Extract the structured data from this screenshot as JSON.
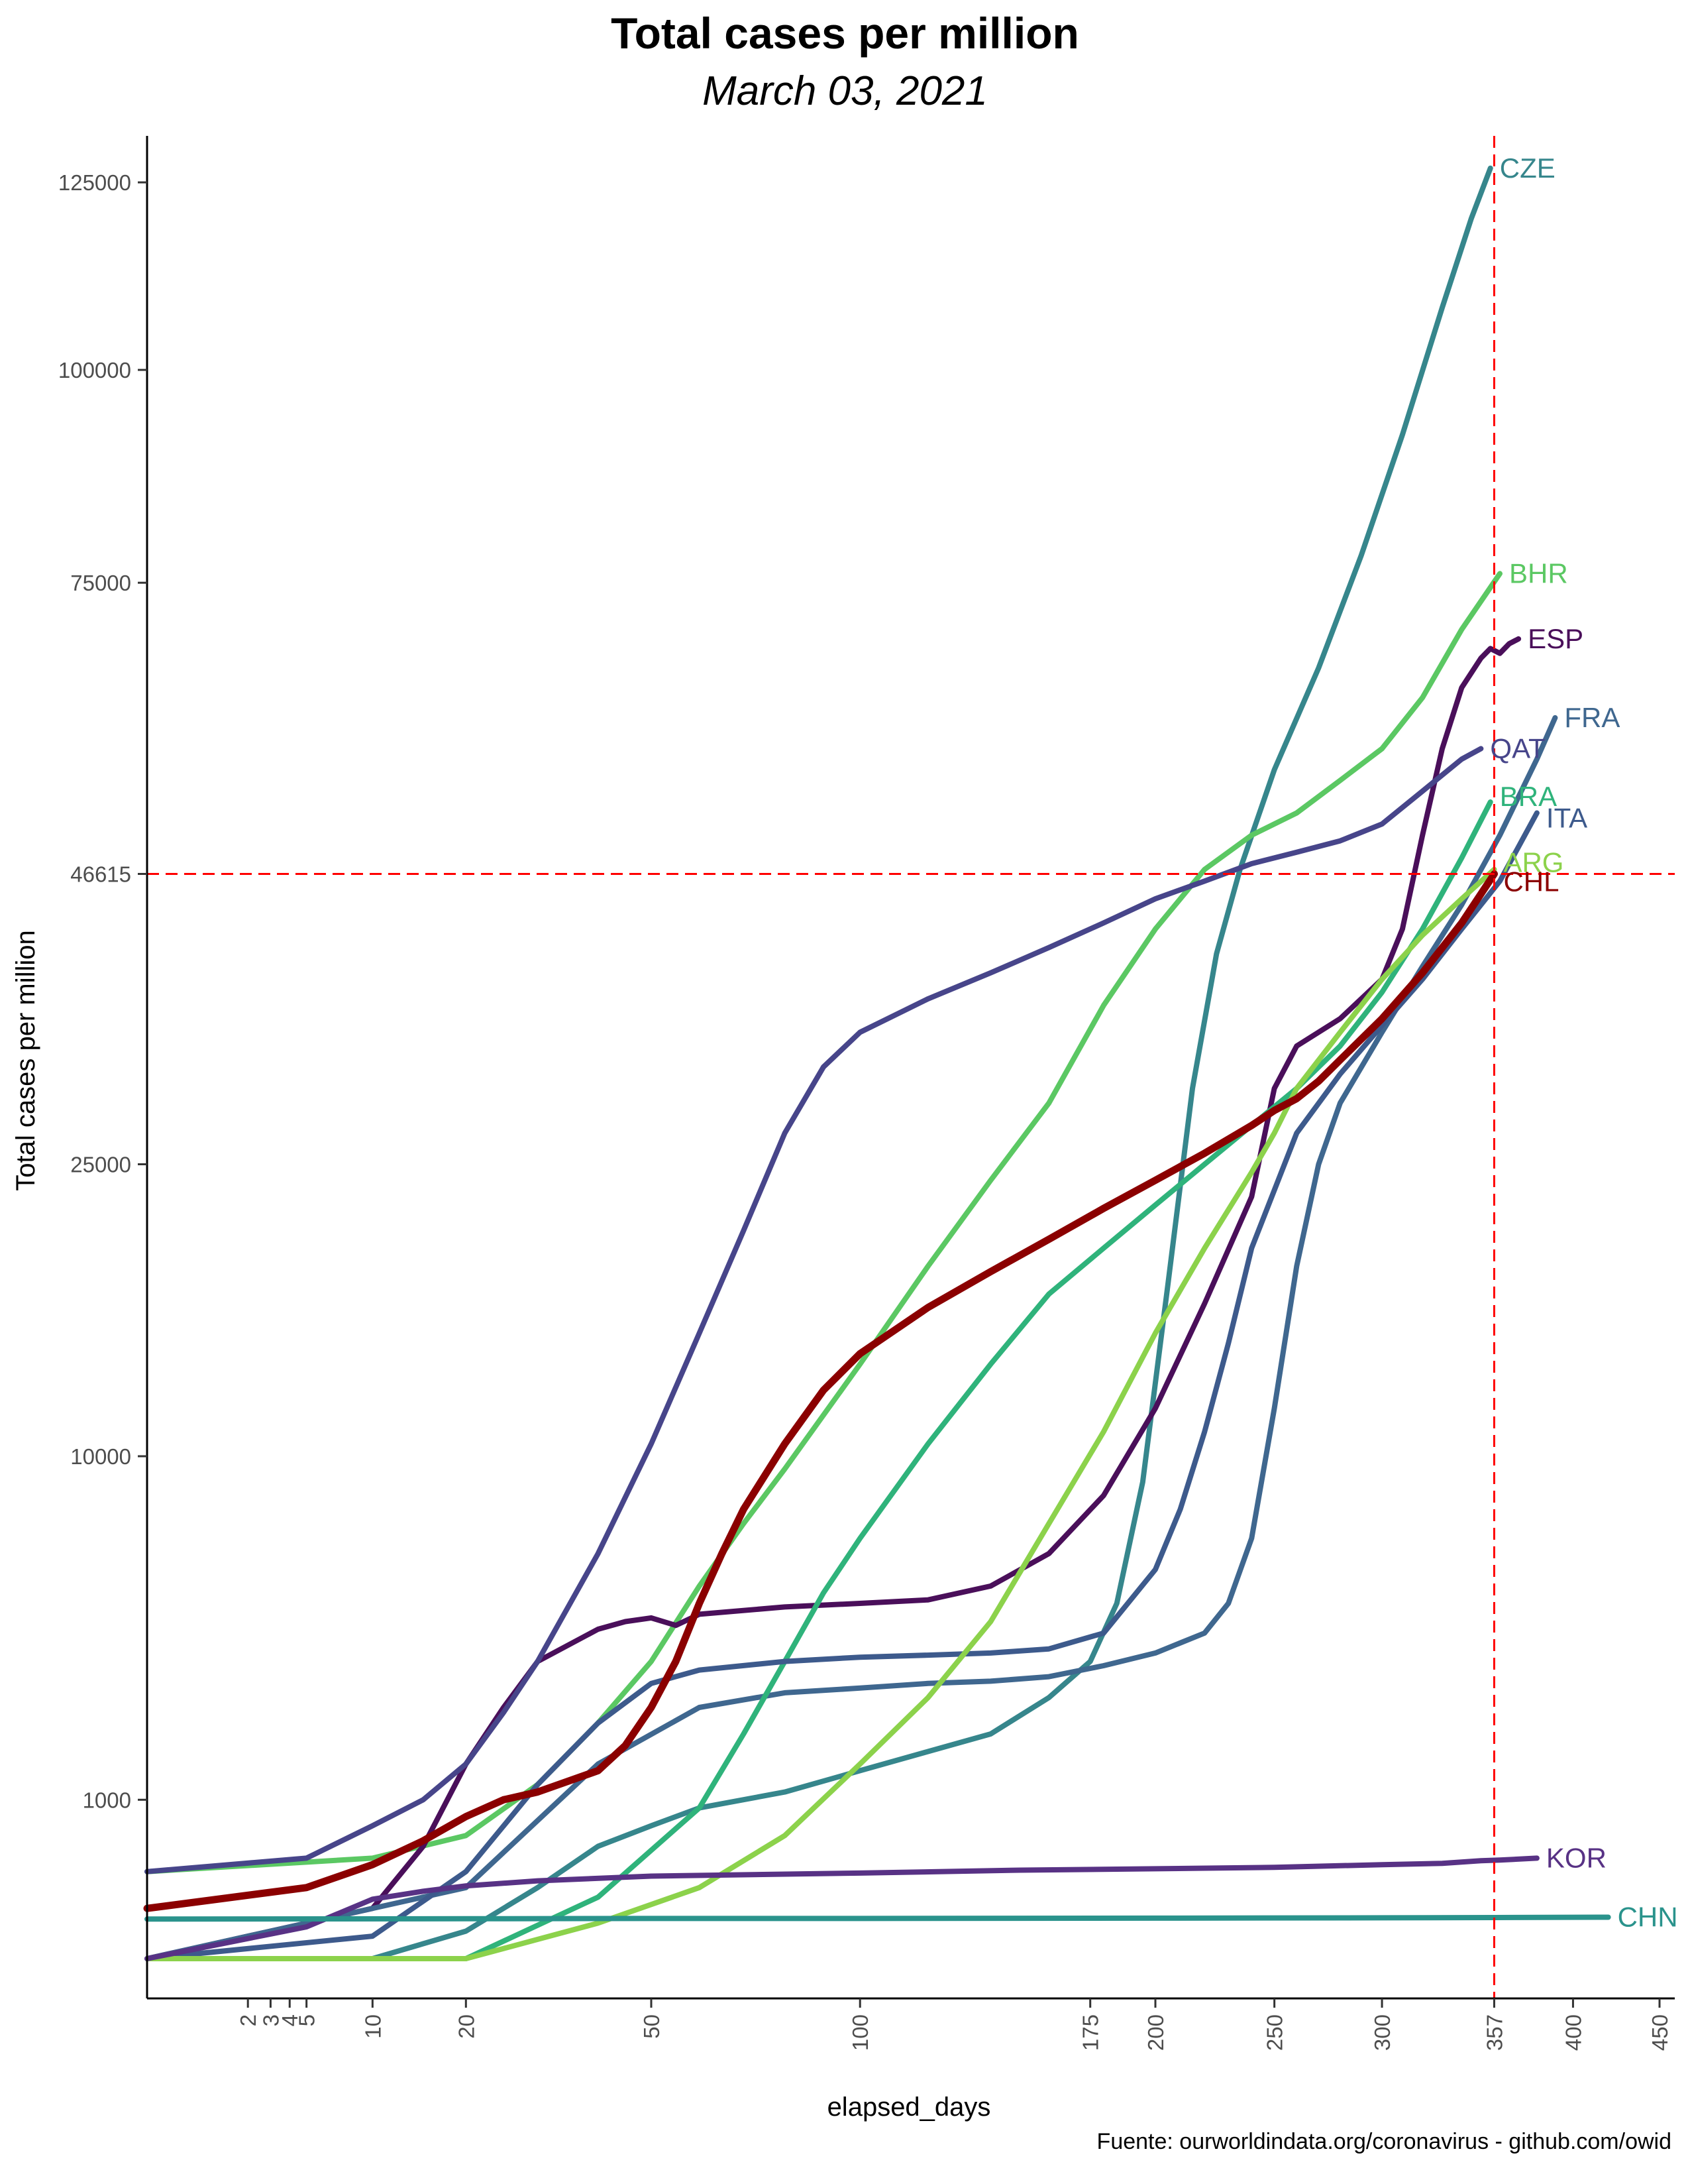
{
  "title": "Total cases per million",
  "subtitle": "March 03, 2021",
  "caption": "Fuente: ourworldindata.org/coronavirus - github.com/owid",
  "chart_data": {
    "type": "line",
    "title": "Total cases per million",
    "subtitle": "March 03, 2021",
    "xlabel": "elapsed_days",
    "ylabel": "Total cases per million",
    "x_scale": "sqrt",
    "y_scale": "sqrt",
    "xlim": [
      0,
      450
    ],
    "ylim": [
      0,
      135000
    ],
    "x_ticks": [
      2,
      3,
      4,
      5,
      10,
      20,
      50,
      100,
      175,
      200,
      250,
      300,
      357,
      400,
      450
    ],
    "y_ticks": [
      1000,
      10000,
      25000,
      46615,
      75000,
      100000,
      125000
    ],
    "grid": false,
    "legend": "none",
    "reference_lines": [
      {
        "axis": "x",
        "value": 357,
        "color": "#ff0000",
        "style": "dashed"
      },
      {
        "axis": "y",
        "value": 46615,
        "color": "#ff0000",
        "style": "dashed"
      }
    ],
    "series": [
      {
        "name": "CZE",
        "color": "#36868c",
        "width": 8,
        "x": [
          0,
          10,
          20,
          30,
          40,
          50,
          60,
          80,
          100,
          120,
          140,
          160,
          175,
          185,
          195,
          205,
          215,
          225,
          235,
          250,
          270,
          290,
          310,
          330,
          345,
          355
        ],
        "y": [
          0,
          0,
          30,
          200,
          500,
          700,
          900,
          1100,
          1400,
          1700,
          2000,
          2700,
          3500,
          5000,
          9000,
          18000,
          30000,
          40000,
          47000,
          56000,
          66000,
          78000,
          92000,
          108000,
          120000,
          127000
        ]
      },
      {
        "name": "BHR",
        "color": "#5bc863",
        "width": 8,
        "x": [
          0,
          10,
          20,
          30,
          40,
          50,
          60,
          70,
          80,
          100,
          120,
          140,
          160,
          180,
          200,
          220,
          240,
          260,
          280,
          300,
          320,
          340,
          360
        ],
        "y": [
          300,
          400,
          600,
          1200,
          2200,
          3500,
          5500,
          7500,
          9500,
          14000,
          19000,
          24000,
          29000,
          36000,
          42000,
          47000,
          50000,
          52000,
          55000,
          58000,
          63000,
          70000,
          76000
        ]
      },
      {
        "name": "ESP",
        "color": "#4a0f5a",
        "width": 8,
        "x": [
          0,
          10,
          15,
          20,
          25,
          30,
          40,
          45,
          50,
          55,
          60,
          80,
          100,
          120,
          140,
          160,
          180,
          200,
          220,
          240,
          250,
          260,
          280,
          300,
          310,
          320,
          330,
          340,
          350,
          355,
          360,
          365,
          370
        ],
        "y": [
          0,
          100,
          500,
          1500,
          2500,
          3500,
          4300,
          4500,
          4600,
          4400,
          4700,
          4900,
          5000,
          5100,
          5500,
          6500,
          8500,
          12000,
          17000,
          23000,
          30000,
          33000,
          35000,
          38000,
          42000,
          50000,
          58000,
          64000,
          67000,
          68000,
          67500,
          68500,
          69000
        ]
      },
      {
        "name": "FRA",
        "color": "#3f678f",
        "width": 8,
        "x": [
          0,
          20,
          40,
          60,
          80,
          100,
          120,
          140,
          160,
          180,
          200,
          220,
          230,
          240,
          250,
          260,
          270,
          280,
          300,
          320,
          340,
          360,
          380,
          390
        ],
        "y": [
          0,
          200,
          1500,
          2500,
          2800,
          2900,
          3000,
          3050,
          3150,
          3400,
          3700,
          4200,
          5000,
          7000,
          12000,
          19000,
          25000,
          29000,
          34000,
          39000,
          44000,
          50000,
          57000,
          61000
        ]
      },
      {
        "name": "QAT",
        "color": "#47458a",
        "width": 8,
        "x": [
          0,
          5,
          10,
          15,
          20,
          25,
          30,
          40,
          50,
          60,
          70,
          80,
          90,
          100,
          120,
          140,
          160,
          180,
          200,
          220,
          240,
          260,
          280,
          300,
          320,
          340,
          350
        ],
        "y": [
          300,
          400,
          700,
          1000,
          1500,
          2400,
          3500,
          6500,
          10500,
          15500,
          21000,
          27000,
          31500,
          34000,
          36500,
          38500,
          40500,
          42500,
          44500,
          46000,
          47500,
          48500,
          49500,
          51000,
          54000,
          57000,
          58000
        ]
      },
      {
        "name": "BRA",
        "color": "#2fb37b",
        "width": 8,
        "x": [
          0,
          20,
          40,
          60,
          70,
          80,
          90,
          100,
          120,
          140,
          160,
          180,
          200,
          220,
          240,
          260,
          280,
          300,
          320,
          340,
          355
        ],
        "y": [
          0,
          0,
          150,
          900,
          2000,
          3500,
          5300,
          7000,
          10500,
          14000,
          17500,
          20000,
          22500,
          25000,
          27500,
          30000,
          33000,
          37000,
          42000,
          48000,
          53000
        ]
      },
      {
        "name": "ITA",
        "color": "#3d5a8c",
        "width": 8,
        "x": [
          0,
          10,
          20,
          30,
          40,
          50,
          60,
          80,
          100,
          120,
          140,
          160,
          180,
          200,
          210,
          220,
          230,
          240,
          260,
          280,
          300,
          320,
          340,
          360,
          380
        ],
        "y": [
          0,
          20,
          300,
          1200,
          2200,
          3000,
          3300,
          3500,
          3600,
          3650,
          3700,
          3800,
          4200,
          6000,
          8000,
          11000,
          15000,
          20000,
          27000,
          31000,
          34500,
          38000,
          42000,
          46000,
          52000
        ]
      },
      {
        "name": "ARG",
        "color": "#8cd24b",
        "width": 8,
        "x": [
          0,
          20,
          40,
          60,
          80,
          100,
          120,
          140,
          160,
          180,
          200,
          220,
          240,
          250,
          260,
          280,
          300,
          320,
          340,
          357
        ],
        "y": [
          0,
          0,
          50,
          200,
          600,
          1500,
          2700,
          4500,
          7500,
          11000,
          15500,
          20000,
          24500,
          27000,
          30000,
          34000,
          38000,
          41500,
          44500,
          47000
        ]
      },
      {
        "name": "CHL",
        "color": "#8b0000",
        "width": 11,
        "x": [
          0,
          5,
          10,
          15,
          20,
          25,
          30,
          40,
          45,
          50,
          55,
          60,
          65,
          70,
          80,
          90,
          100,
          120,
          140,
          160,
          180,
          200,
          220,
          240,
          250,
          260,
          270,
          280,
          300,
          320,
          340,
          357
        ],
        "y": [
          100,
          200,
          350,
          550,
          800,
          1000,
          1100,
          1400,
          1800,
          2500,
          3500,
          5000,
          6500,
          8000,
          10500,
          12800,
          14500,
          16800,
          18700,
          20500,
          22300,
          24000,
          25700,
          27500,
          28500,
          29300,
          30500,
          32000,
          35000,
          38500,
          42500,
          46615
        ]
      },
      {
        "name": "KOR",
        "color": "#583285",
        "width": 8,
        "x": [
          0,
          5,
          10,
          15,
          20,
          30,
          50,
          100,
          150,
          200,
          250,
          300,
          330,
          350,
          360,
          380
        ],
        "y": [
          0,
          40,
          140,
          180,
          210,
          240,
          270,
          290,
          310,
          320,
          330,
          350,
          360,
          380,
          385,
          400
        ]
      },
      {
        "name": "CHN",
        "color": "#2a938c",
        "width": 8,
        "x": [
          0,
          20,
          50,
          100,
          200,
          300,
          357,
          420
        ],
        "y": [
          62,
          63,
          64,
          64,
          65,
          66,
          67,
          68
        ]
      }
    ]
  }
}
